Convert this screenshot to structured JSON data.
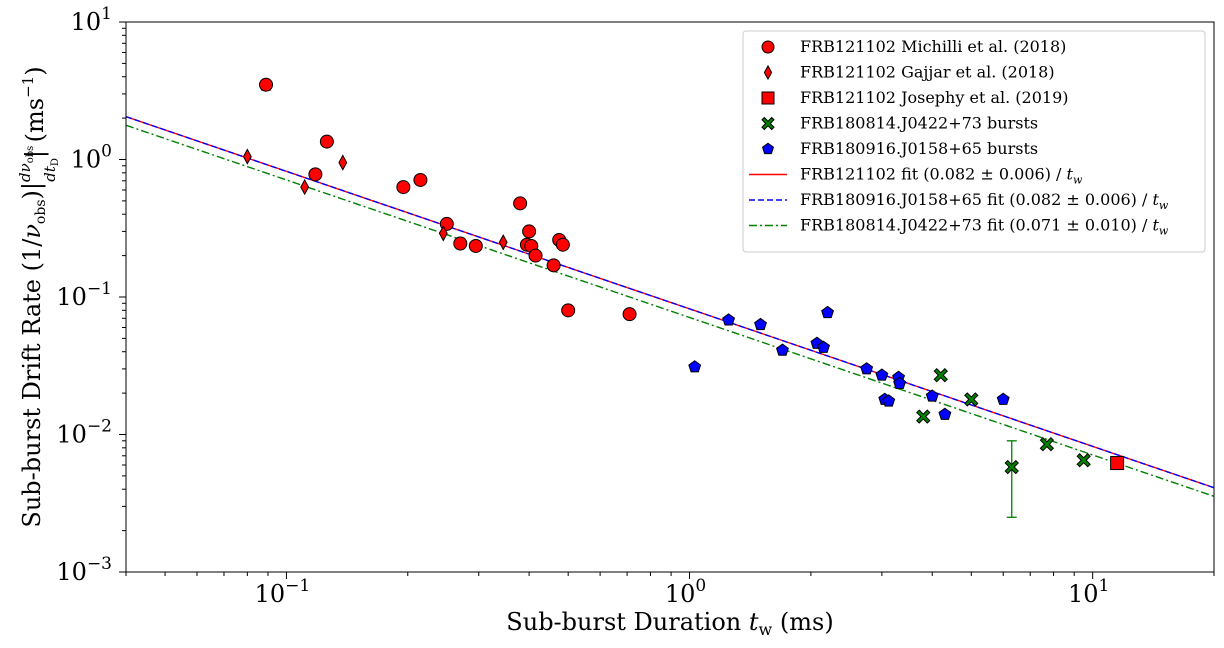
{
  "chart_data": {
    "type": "scatter",
    "title": "",
    "xlabel": "Sub-burst Duration t_w (ms)",
    "ylabel": "Sub-burst Drift Rate (1/ν_obs)|dν_obs/dt_D| (ms^-1)",
    "x_scale": "log",
    "y_scale": "log",
    "xlim": [
      0.04,
      20
    ],
    "ylim": [
      0.001,
      10
    ],
    "grid": false,
    "legend_position": "top-right",
    "x_tick_labels": [
      {
        "value": 0.1,
        "base": "10",
        "exp": "−1"
      },
      {
        "value": 1,
        "base": "10",
        "exp": "0"
      },
      {
        "value": 10,
        "base": "10",
        "exp": "1"
      }
    ],
    "y_tick_labels": [
      {
        "value": 0.001,
        "base": "10",
        "exp": "−3"
      },
      {
        "value": 0.01,
        "base": "10",
        "exp": "−2"
      },
      {
        "value": 0.1,
        "base": "10",
        "exp": "−1"
      },
      {
        "value": 1,
        "base": "10",
        "exp": "0"
      },
      {
        "value": 10,
        "base": "10",
        "exp": "1"
      }
    ],
    "series": [
      {
        "name": "FRB121102 Michilli et al. (2018)",
        "marker": "circle",
        "color": "#ff0000",
        "points": [
          [
            0.089,
            3.5
          ],
          [
            0.118,
            0.78
          ],
          [
            0.126,
            1.35
          ],
          [
            0.195,
            0.63
          ],
          [
            0.215,
            0.71
          ],
          [
            0.25,
            0.34
          ],
          [
            0.27,
            0.245
          ],
          [
            0.295,
            0.235
          ],
          [
            0.38,
            0.48
          ],
          [
            0.395,
            0.24
          ],
          [
            0.4,
            0.3
          ],
          [
            0.405,
            0.235
          ],
          [
            0.415,
            0.2
          ],
          [
            0.46,
            0.17
          ],
          [
            0.475,
            0.26
          ],
          [
            0.485,
            0.24
          ],
          [
            0.5,
            0.08
          ],
          [
            0.71,
            0.075
          ]
        ],
        "error_bars": [
          {
            "x": 0.089,
            "y_low": 3.2,
            "y_high": 3.6
          }
        ]
      },
      {
        "name": "FRB121102 Gajjar et al. (2018)",
        "marker": "diamond",
        "color": "#ff0000",
        "points": [
          [
            0.08,
            1.05
          ],
          [
            0.111,
            0.63
          ],
          [
            0.138,
            0.95
          ],
          [
            0.245,
            0.29
          ],
          [
            0.345,
            0.25
          ]
        ]
      },
      {
        "name": "FRB121102 Josephy et al. (2019)",
        "marker": "square",
        "color": "#ff0000",
        "points": [
          [
            11.5,
            0.0062
          ]
        ]
      },
      {
        "name": "FRB180814.J0422+73 bursts",
        "marker": "x",
        "color": "#008000",
        "points": [
          [
            3.8,
            0.0135
          ],
          [
            4.2,
            0.027
          ],
          [
            5.0,
            0.018
          ],
          [
            6.3,
            0.0058
          ],
          [
            7.7,
            0.0085
          ],
          [
            9.5,
            0.0065
          ]
        ],
        "error_bars": [
          {
            "x": 6.3,
            "y_low": 0.0025,
            "y_high": 0.009
          }
        ]
      },
      {
        "name": "FRB180916.J0158+65 bursts",
        "marker": "pentagon",
        "color": "#0000ff",
        "points": [
          [
            1.03,
            0.031
          ],
          [
            1.25,
            0.068
          ],
          [
            1.5,
            0.063
          ],
          [
            1.7,
            0.041
          ],
          [
            2.07,
            0.046
          ],
          [
            2.15,
            0.043
          ],
          [
            2.2,
            0.077
          ],
          [
            2.75,
            0.03
          ],
          [
            3.0,
            0.027
          ],
          [
            3.05,
            0.018
          ],
          [
            3.12,
            0.0175
          ],
          [
            3.3,
            0.026
          ],
          [
            3.32,
            0.0235
          ],
          [
            4.0,
            0.019
          ],
          [
            4.3,
            0.014
          ],
          [
            6.0,
            0.018
          ]
        ]
      }
    ],
    "fits": [
      {
        "name_prefix": "FRB121102 fit (0.082 ± 0.006) / ",
        "coefficient": 0.082,
        "color": "#ff0000",
        "style": "solid"
      },
      {
        "name_prefix": "FRB180916.J0158+65 fit (0.082 ± 0.006) / ",
        "coefficient": 0.082,
        "color": "#0000ff",
        "style": "dashed"
      },
      {
        "name_prefix": "FRB180814.J0422+73 fit (0.071 ± 0.010) / ",
        "coefficient": 0.071,
        "color": "#008000",
        "style": "dashdot"
      }
    ],
    "fit_name_suffix": "t",
    "fit_name_suffix_sub": "w"
  }
}
